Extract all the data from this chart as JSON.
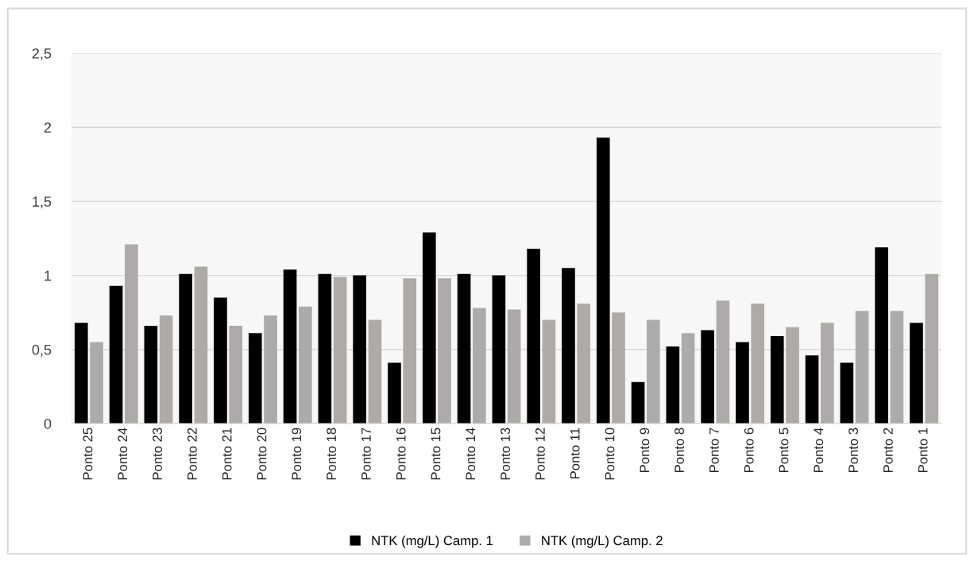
{
  "chart_data": {
    "type": "bar",
    "categories": [
      "Ponto 25",
      "Ponto 24",
      "Ponto 23",
      "Ponto 22",
      "Ponto 21",
      "Ponto 20",
      "Ponto 19",
      "Ponto 18",
      "Ponto 17",
      "Ponto 16",
      "Ponto 15",
      "Ponto 14",
      "Ponto 13",
      "Ponto 12",
      "Ponto 11",
      "Ponto 10",
      "Ponto 9",
      "Ponto 8",
      "Ponto 7",
      "Ponto 6",
      "Ponto 5",
      "Ponto 4",
      "Ponto 3",
      "Ponto 2",
      "Ponto 1"
    ],
    "series": [
      {
        "name": "NTK (mg/L) Camp. 1",
        "color": "#000000",
        "values": [
          0.68,
          0.93,
          0.66,
          1.01,
          0.85,
          0.61,
          1.04,
          1.01,
          1.0,
          0.41,
          1.29,
          1.01,
          1.0,
          1.18,
          1.05,
          1.93,
          0.28,
          0.52,
          0.63,
          0.55,
          0.59,
          0.46,
          0.41,
          1.19,
          0.68
        ]
      },
      {
        "name": "NTK (mg/L) Camp. 2",
        "color": "#aeaaaa",
        "values": [
          0.55,
          1.21,
          0.73,
          1.06,
          0.66,
          0.73,
          0.79,
          0.99,
          0.7,
          0.98,
          0.98,
          0.78,
          0.77,
          0.7,
          0.81,
          0.75,
          0.7,
          0.61,
          0.83,
          0.81,
          0.65,
          0.68,
          0.76,
          0.76,
          1.01
        ]
      }
    ],
    "ylim": [
      0,
      2.5
    ],
    "yticks": [
      0,
      {
        "value": 0.5,
        "label": "0,5"
      },
      1,
      {
        "value": 1.5,
        "label": "1,5"
      },
      2,
      {
        "value": 2.5,
        "label": "2,5"
      }
    ],
    "grid": "y",
    "legend": "bottom"
  }
}
